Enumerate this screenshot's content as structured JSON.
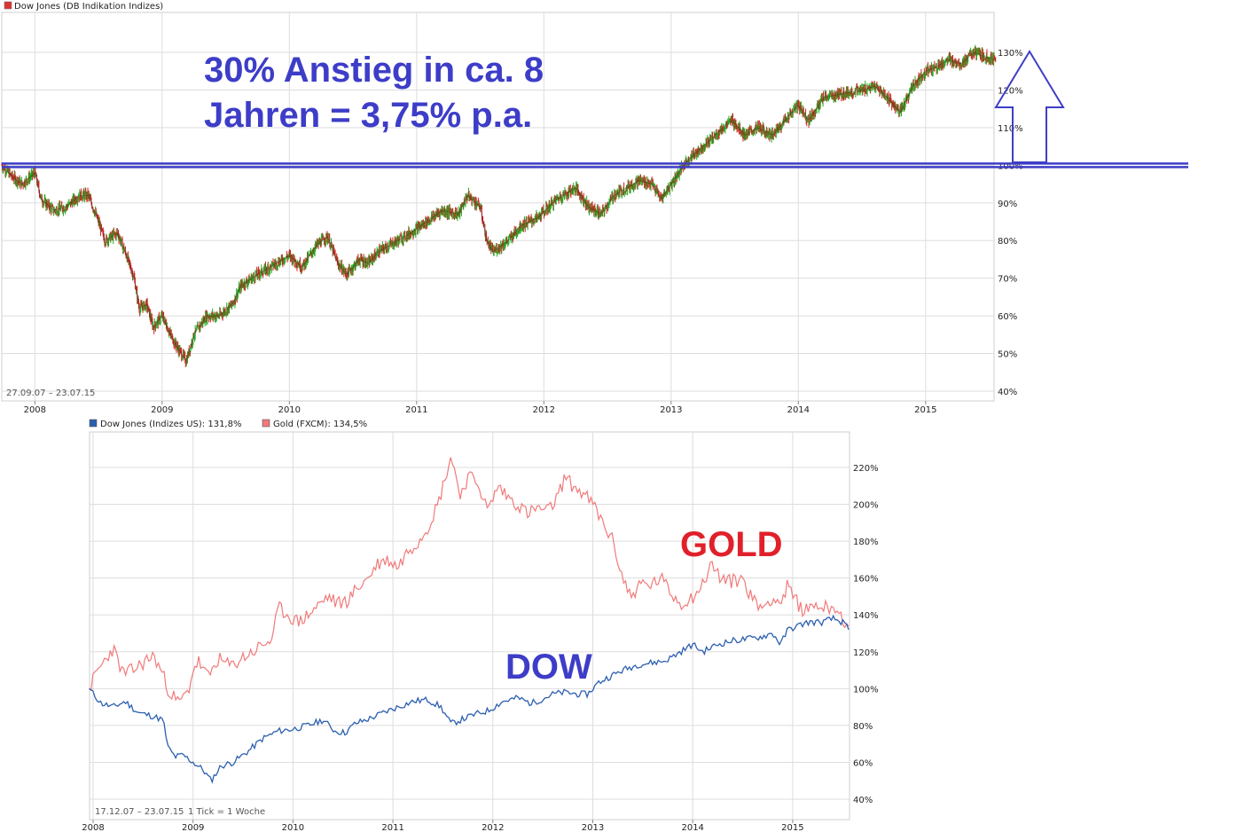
{
  "colors": {
    "annotation_blue": "#3d3dc8",
    "gold_label_red": "#e0202a",
    "dow_line": "#2b5fb0",
    "gold_line": "#f07a7a",
    "candle_up": "#22aa22",
    "candle_down": "#cc2222",
    "grid": "#dddddd"
  },
  "top_chart": {
    "legend_label": "Dow Jones (DB Indikation Indizes)",
    "date_range": "27.09.07 – 23.07.15",
    "annotation_line1": "30% Anstieg in ca. 8",
    "annotation_line2": "Jahren = 3,75% p.a."
  },
  "bottom_chart": {
    "legend_dow": "Dow Jones (Indizes US): 131,8%",
    "legend_gold": "Gold (FXCM): 134,5%",
    "date_range": "17.12.07 – 23.07.15",
    "tick_info": "1 Tick = 1 Woche",
    "label_gold": "GOLD",
    "label_dow": "DOW"
  },
  "chart_data": [
    {
      "type": "candlestick",
      "legend": [
        "Dow Jones (DB Indikation Indizes)"
      ],
      "x_ticks": [
        "2008",
        "2009",
        "2010",
        "2011",
        "2012",
        "2013",
        "2014",
        "2015"
      ],
      "y_ticks": [
        "130%",
        "120%",
        "110%",
        "100%",
        "90%",
        "80%",
        "70%",
        "60%",
        "50%",
        "40%"
      ],
      "ylim": [
        40,
        132
      ],
      "xlim": [
        2007.74,
        2015.56
      ],
      "reference_line": 100,
      "series": [
        {
          "points": [
            [
              2007.74,
              100
            ],
            [
              2007.82,
              97
            ],
            [
              2007.9,
              95
            ],
            [
              2008.0,
              98
            ],
            [
              2008.05,
              91
            ],
            [
              2008.15,
              88
            ],
            [
              2008.25,
              89
            ],
            [
              2008.35,
              92
            ],
            [
              2008.42,
              92
            ],
            [
              2008.5,
              85
            ],
            [
              2008.55,
              80
            ],
            [
              2008.65,
              82
            ],
            [
              2008.72,
              76
            ],
            [
              2008.78,
              70
            ],
            [
              2008.82,
              62
            ],
            [
              2008.88,
              63
            ],
            [
              2008.93,
              57
            ],
            [
              2009.0,
              60
            ],
            [
              2009.08,
              54
            ],
            [
              2009.13,
              51
            ],
            [
              2009.19,
              48
            ],
            [
              2009.25,
              55
            ],
            [
              2009.35,
              60
            ],
            [
              2009.45,
              60
            ],
            [
              2009.55,
              63
            ],
            [
              2009.62,
              68
            ],
            [
              2009.75,
              71
            ],
            [
              2009.9,
              74
            ],
            [
              2010.0,
              76
            ],
            [
              2010.1,
              73
            ],
            [
              2010.22,
              79
            ],
            [
              2010.3,
              81
            ],
            [
              2010.38,
              74
            ],
            [
              2010.45,
              71
            ],
            [
              2010.55,
              75
            ],
            [
              2010.62,
              74
            ],
            [
              2010.7,
              77
            ],
            [
              2010.85,
              80
            ],
            [
              2010.95,
              82
            ],
            [
              2011.08,
              85
            ],
            [
              2011.2,
              88
            ],
            [
              2011.33,
              87
            ],
            [
              2011.4,
              92
            ],
            [
              2011.5,
              89
            ],
            [
              2011.55,
              80
            ],
            [
              2011.6,
              77
            ],
            [
              2011.72,
              80
            ],
            [
              2011.82,
              84
            ],
            [
              2011.95,
              86
            ],
            [
              2012.1,
              91
            ],
            [
              2012.25,
              94
            ],
            [
              2012.35,
              89
            ],
            [
              2012.45,
              87
            ],
            [
              2012.55,
              92
            ],
            [
              2012.65,
              94
            ],
            [
              2012.75,
              96
            ],
            [
              2012.85,
              95
            ],
            [
              2012.92,
              91
            ],
            [
              2013.0,
              95
            ],
            [
              2013.12,
              101
            ],
            [
              2013.25,
              105
            ],
            [
              2013.38,
              109
            ],
            [
              2013.48,
              112
            ],
            [
              2013.58,
              108
            ],
            [
              2013.68,
              110
            ],
            [
              2013.8,
              108
            ],
            [
              2013.92,
              113
            ],
            [
              2014.0,
              116
            ],
            [
              2014.08,
              112
            ],
            [
              2014.2,
              118
            ],
            [
              2014.35,
              119
            ],
            [
              2014.5,
              120
            ],
            [
              2014.6,
              121
            ],
            [
              2014.7,
              118
            ],
            [
              2014.8,
              114
            ],
            [
              2014.9,
              121
            ],
            [
              2015.0,
              125
            ],
            [
              2015.08,
              126
            ],
            [
              2015.18,
              128
            ],
            [
              2015.28,
              127
            ],
            [
              2015.38,
              130
            ],
            [
              2015.45,
              129
            ],
            [
              2015.55,
              128
            ]
          ]
        }
      ]
    },
    {
      "type": "line",
      "x_ticks": [
        "2008",
        "2009",
        "2010",
        "2011",
        "2012",
        "2013",
        "2014",
        "2015"
      ],
      "y_ticks": [
        "220%",
        "200%",
        "180%",
        "160%",
        "140%",
        "120%",
        "100%",
        "80%",
        "60%",
        "40%"
      ],
      "ylim": [
        40,
        230
      ],
      "xlim": [
        2007.96,
        2015.56
      ],
      "series": [
        {
          "name": "Dow Jones (Indizes US): 131,8%",
          "points": [
            [
              2007.96,
              100
            ],
            [
              2008.08,
              92
            ],
            [
              2008.2,
              90
            ],
            [
              2008.32,
              93
            ],
            [
              2008.45,
              87
            ],
            [
              2008.6,
              85
            ],
            [
              2008.7,
              83
            ],
            [
              2008.75,
              68
            ],
            [
              2008.82,
              63
            ],
            [
              2008.9,
              64
            ],
            [
              2009.0,
              60
            ],
            [
              2009.1,
              56
            ],
            [
              2009.18,
              50
            ],
            [
              2009.28,
              58
            ],
            [
              2009.4,
              60
            ],
            [
              2009.55,
              66
            ],
            [
              2009.7,
              73
            ],
            [
              2009.85,
              77
            ],
            [
              2010.0,
              78
            ],
            [
              2010.15,
              80
            ],
            [
              2010.3,
              83
            ],
            [
              2010.42,
              77
            ],
            [
              2010.52,
              76
            ],
            [
              2010.62,
              81
            ],
            [
              2010.78,
              84
            ],
            [
              2010.95,
              88
            ],
            [
              2011.1,
              91
            ],
            [
              2011.2,
              93
            ],
            [
              2011.35,
              94
            ],
            [
              2011.48,
              90
            ],
            [
              2011.58,
              81
            ],
            [
              2011.68,
              83
            ],
            [
              2011.82,
              86
            ],
            [
              2011.95,
              88
            ],
            [
              2012.1,
              93
            ],
            [
              2012.25,
              95
            ],
            [
              2012.38,
              92
            ],
            [
              2012.48,
              94
            ],
            [
              2012.6,
              97
            ],
            [
              2012.72,
              98
            ],
            [
              2012.85,
              97
            ],
            [
              2012.95,
              97
            ],
            [
              2013.05,
              103
            ],
            [
              2013.15,
              106
            ],
            [
              2013.3,
              110
            ],
            [
              2013.45,
              113
            ],
            [
              2013.58,
              114
            ],
            [
              2013.72,
              115
            ],
            [
              2013.85,
              119
            ],
            [
              2014.0,
              124
            ],
            [
              2014.1,
              120
            ],
            [
              2014.25,
              124
            ],
            [
              2014.4,
              126
            ],
            [
              2014.55,
              127
            ],
            [
              2014.68,
              128
            ],
            [
              2014.8,
              130
            ],
            [
              2014.88,
              124
            ],
            [
              2014.95,
              132
            ],
            [
              2015.05,
              134
            ],
            [
              2015.15,
              136
            ],
            [
              2015.3,
              136
            ],
            [
              2015.4,
              138
            ],
            [
              2015.5,
              136
            ],
            [
              2015.56,
              132
            ]
          ]
        },
        {
          "name": "Gold (FXCM): 134,5%",
          "points": [
            [
              2007.96,
              100
            ],
            [
              2008.05,
              110
            ],
            [
              2008.15,
              118
            ],
            [
              2008.2,
              122
            ],
            [
              2008.3,
              108
            ],
            [
              2008.4,
              110
            ],
            [
              2008.5,
              114
            ],
            [
              2008.6,
              118
            ],
            [
              2008.68,
              110
            ],
            [
              2008.75,
              100
            ],
            [
              2008.85,
              92
            ],
            [
              2008.95,
              98
            ],
            [
              2009.0,
              110
            ],
            [
              2009.05,
              115
            ],
            [
              2009.15,
              106
            ],
            [
              2009.25,
              116
            ],
            [
              2009.38,
              112
            ],
            [
              2009.5,
              117
            ],
            [
              2009.6,
              120
            ],
            [
              2009.7,
              124
            ],
            [
              2009.8,
              127
            ],
            [
              2009.85,
              144
            ],
            [
              2009.95,
              140
            ],
            [
              2010.05,
              136
            ],
            [
              2010.15,
              140
            ],
            [
              2010.25,
              145
            ],
            [
              2010.35,
              150
            ],
            [
              2010.45,
              146
            ],
            [
              2010.55,
              148
            ],
            [
              2010.65,
              155
            ],
            [
              2010.75,
              160
            ],
            [
              2010.85,
              168
            ],
            [
              2010.95,
              170
            ],
            [
              2011.05,
              166
            ],
            [
              2011.15,
              175
            ],
            [
              2011.25,
              180
            ],
            [
              2011.35,
              188
            ],
            [
              2011.45,
              200
            ],
            [
              2011.58,
              226
            ],
            [
              2011.68,
              205
            ],
            [
              2011.75,
              215
            ],
            [
              2011.85,
              212
            ],
            [
              2011.95,
              196
            ],
            [
              2012.05,
              210
            ],
            [
              2012.15,
              204
            ],
            [
              2012.25,
              200
            ],
            [
              2012.35,
              195
            ],
            [
              2012.45,
              198
            ],
            [
              2012.55,
              196
            ],
            [
              2012.65,
              204
            ],
            [
              2012.72,
              215
            ],
            [
              2012.8,
              210
            ],
            [
              2012.9,
              206
            ],
            [
              2013.0,
              200
            ],
            [
              2013.1,
              190
            ],
            [
              2013.2,
              180
            ],
            [
              2013.3,
              160
            ],
            [
              2013.38,
              150
            ],
            [
              2013.48,
              157
            ],
            [
              2013.58,
              156
            ],
            [
              2013.68,
              160
            ],
            [
              2013.78,
              152
            ],
            [
              2013.88,
              146
            ],
            [
              2014.0,
              150
            ],
            [
              2014.1,
              156
            ],
            [
              2014.18,
              168
            ],
            [
              2014.28,
              160
            ],
            [
              2014.38,
              158
            ],
            [
              2014.5,
              160
            ],
            [
              2014.6,
              148
            ],
            [
              2014.7,
              144
            ],
            [
              2014.8,
              150
            ],
            [
              2014.88,
              146
            ],
            [
              2014.95,
              156
            ],
            [
              2015.02,
              148
            ],
            [
              2015.12,
              142
            ],
            [
              2015.22,
              146
            ],
            [
              2015.32,
              144
            ],
            [
              2015.42,
              145
            ],
            [
              2015.5,
              138
            ],
            [
              2015.56,
              134
            ]
          ]
        }
      ]
    }
  ]
}
